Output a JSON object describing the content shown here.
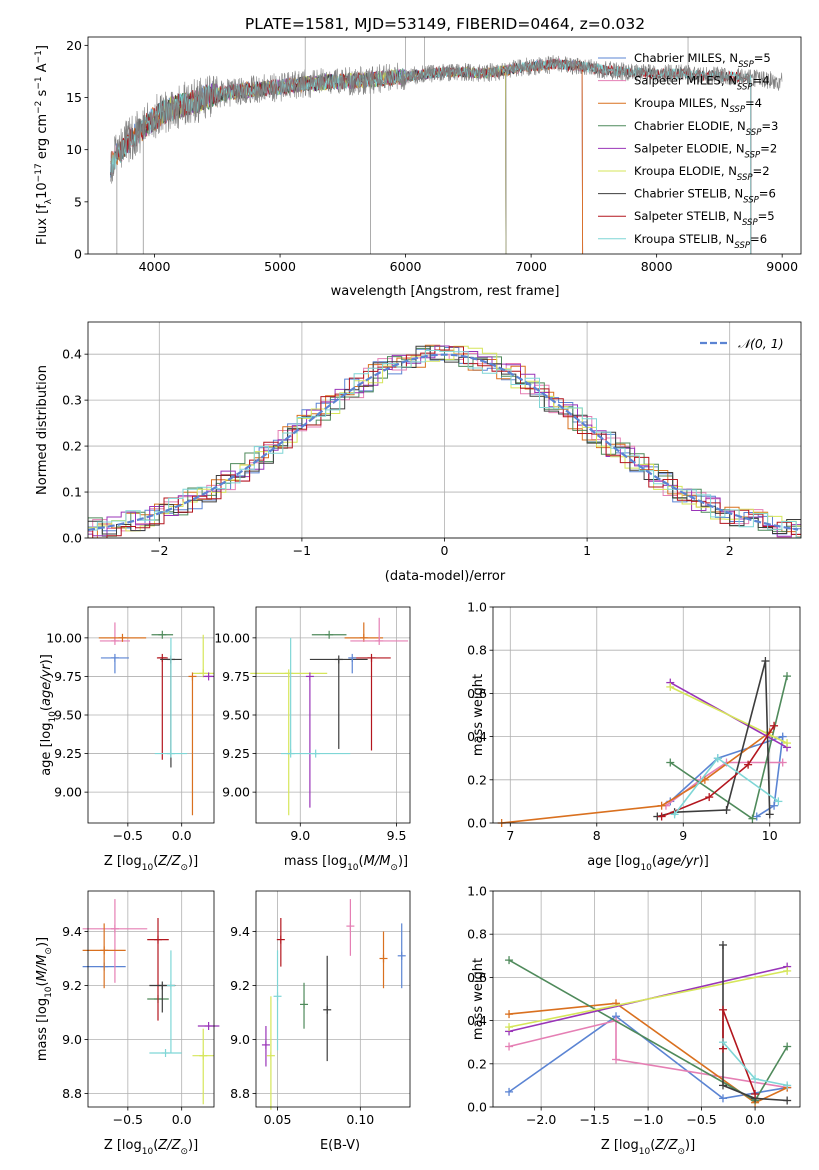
{
  "figure": {
    "title": "PLATE=1581, MJD=53149, FIBERID=0464, z=0.032"
  },
  "series_styles": [
    {
      "name": "Chabrier MILES, N$_{SSP}$=5",
      "label_main": "Chabrier MILES, N",
      "label_sub": "SSP",
      "label_tail": "=5",
      "color": "#5b84d3"
    },
    {
      "name": "Salpeter MILES, N$_{SSP}$=4",
      "label_main": "Salpeter MILES, N",
      "label_sub": "SSP",
      "label_tail": "=4",
      "color": "#e57fb4"
    },
    {
      "name": "Kroupa MILES, N$_{SSP}$=4",
      "label_main": "Kroupa MILES, N",
      "label_sub": "SSP",
      "label_tail": "=4",
      "color": "#d9701f"
    },
    {
      "name": "Chabrier ELODIE, N$_{SSP}$=3",
      "label_main": "Chabrier ELODIE, N",
      "label_sub": "SSP",
      "label_tail": "=3",
      "color": "#4f8a5b"
    },
    {
      "name": "Salpeter ELODIE, N$_{SSP}$=2",
      "label_main": "Salpeter ELODIE, N",
      "label_sub": "SSP",
      "label_tail": "=2",
      "color": "#9934b8"
    },
    {
      "name": "Kroupa ELODIE, N$_{SSP}$=2",
      "label_main": "Kroupa ELODIE, N",
      "label_sub": "SSP",
      "label_tail": "=2",
      "color": "#d6e65a"
    },
    {
      "name": "Chabrier STELIB, N$_{SSP}$=6",
      "label_main": "Chabrier STELIB, N",
      "label_sub": "SSP",
      "label_tail": "=6",
      "color": "#3d3d3d"
    },
    {
      "name": "Salpeter STELIB, N$_{SSP}$=5",
      "label_main": "Salpeter STELIB, N",
      "label_sub": "SSP",
      "label_tail": "=5",
      "color": "#b3161e"
    },
    {
      "name": "Kroupa STELIB, N$_{SSP}$=6",
      "label_main": "Kroupa STELIB, N",
      "label_sub": "SSP",
      "label_tail": "=6",
      "color": "#7fd6d6"
    }
  ],
  "chart_data": [
    {
      "id": "spectrum",
      "type": "line",
      "title": "PLATE=1581, MJD=53149, FIBERID=0464, z=0.032",
      "xlabel": "wavelength [Angstrom, rest frame]",
      "ylabel": "Flux [f$_\\lambda$10$^{-17}$ erg cm$^{-2}$ s$^{-1}$ A$^{-1}$]",
      "xlim": [
        3470,
        9150
      ],
      "ylim": [
        0,
        20.8
      ],
      "xticks": [
        4000,
        5000,
        6000,
        7000,
        8000,
        9000
      ],
      "yticks": [
        0,
        5,
        10,
        15,
        20
      ],
      "grid": false,
      "legend": "top-right",
      "data_color": "#808080",
      "continuum": {
        "x": [
          3650,
          3700,
          3800,
          3900,
          4000,
          4100,
          4200,
          4300,
          4400,
          4600,
          4800,
          5000,
          5200,
          5400,
          5600,
          5800,
          6000,
          6200,
          6400,
          6600,
          6800,
          7000,
          7200,
          7400,
          7600,
          7800,
          8000,
          8200,
          8400,
          8600,
          8800,
          9000
        ],
        "y": [
          8.5,
          9.5,
          11.0,
          12.0,
          13.0,
          13.8,
          14.2,
          14.5,
          15.0,
          15.5,
          15.8,
          16.0,
          16.3,
          16.5,
          16.6,
          16.8,
          17.0,
          17.3,
          17.5,
          17.3,
          17.6,
          18.0,
          18.2,
          18.0,
          17.6,
          17.4,
          17.3,
          17.3,
          17.1,
          17.0,
          16.8,
          16.5
        ]
      },
      "model_extent": [
        {
          "series": "Chabrier MILES, N$_{SSP}$=5",
          "xmin": 3650,
          "xmax": 7410
        },
        {
          "series": "Salpeter MILES, N$_{SSP}$=4",
          "xmin": 3650,
          "xmax": 7410
        },
        {
          "series": "Kroupa MILES, N$_{SSP}$=4",
          "xmin": 3650,
          "xmax": 7410
        },
        {
          "series": "Chabrier ELODIE, N$_{SSP}$=3",
          "xmin": 3910,
          "xmax": 6800
        },
        {
          "series": "Salpeter ELODIE, N$_{SSP}$=2",
          "xmin": 3910,
          "xmax": 6800
        },
        {
          "series": "Kroupa ELODIE, N$_{SSP}$=2",
          "xmin": 3910,
          "xmax": 6800
        },
        {
          "series": "Chabrier STELIB, N$_{SSP}$=6",
          "xmin": 3650,
          "xmax": 8750
        },
        {
          "series": "Salpeter STELIB, N$_{SSP}$=5",
          "xmin": 3650,
          "xmax": 8750
        },
        {
          "series": "Kroupa STELIB, N$_{SSP}$=6",
          "xmin": 3650,
          "xmax": 8750
        }
      ]
    },
    {
      "id": "residuals",
      "type": "line",
      "xlabel": "(data-model)/error",
      "ylabel": "Normed distribution",
      "xlim": [
        -2.5,
        2.5
      ],
      "ylim": [
        0,
        0.47
      ],
      "xticks": [
        -2,
        -1,
        0,
        1,
        2
      ],
      "yticks": [
        0.0,
        0.1,
        0.2,
        0.3,
        0.4
      ],
      "grid": true,
      "legend": "top-right",
      "reference_curve": {
        "name": "$\\mathcal{N}(0,1)$",
        "label": "𝒩(0, 1)",
        "mean": 0,
        "sigma": 1,
        "color": "#5b84d3"
      },
      "bin_width": 0.1,
      "histogram_model": "normal",
      "histogram_scatter": 0.025
    },
    {
      "id": "age_vs_Z",
      "type": "scatter",
      "xlabel": "Z [log$_{10}$(Z/Z$_\\odot$)]",
      "ylabel": "age  [log$_{10}$(age/yr)]",
      "xlim": [
        -0.87,
        0.3
      ],
      "ylim": [
        8.8,
        10.2
      ],
      "xticks": [
        -0.5,
        0.0
      ],
      "yticks": [
        9.0,
        9.25,
        9.5,
        9.75,
        10.0
      ],
      "grid": true,
      "points": [
        {
          "series": 0,
          "x": -0.62,
          "y": 9.87,
          "xerr": 0.13,
          "yerr": [
            0.1,
            0.0
          ]
        },
        {
          "series": 1,
          "x": -0.62,
          "y": 9.98,
          "xerr": 0.14,
          "yerr": [
            0.0,
            0.12
          ]
        },
        {
          "series": 2,
          "x": -0.55,
          "y": 10.0,
          "xerr": 0.22,
          "yerr": [
            0.0,
            0.0
          ]
        },
        {
          "series": 3,
          "x": -0.18,
          "y": 10.02,
          "xerr": 0.1,
          "yerr": [
            0.0,
            0.0
          ]
        },
        {
          "series": 7,
          "x": -0.18,
          "y": 9.87,
          "xerr": 0.05,
          "yerr": [
            0.66,
            0.0
          ]
        },
        {
          "series": 6,
          "x": -0.1,
          "y": 9.86,
          "xerr": 0.1,
          "yerr": [
            0.7,
            0.0
          ]
        },
        {
          "series": 8,
          "x": -0.1,
          "y": 9.25,
          "xerr": 0.15,
          "yerr": [
            0.0,
            0.75
          ]
        },
        {
          "series": 5,
          "x": 0.2,
          "y": 9.77,
          "xerr": 0.1,
          "yerr": [
            0.0,
            0.25
          ]
        },
        {
          "series": 4,
          "x": 0.25,
          "y": 9.75,
          "xerr": 0.05,
          "yerr": [
            0.0,
            0.0
          ]
        },
        {
          "series": 2,
          "x": 0.1,
          "y": 9.75,
          "xerr": 0.0,
          "yerr": [
            0.9,
            0.0
          ]
        }
      ]
    },
    {
      "id": "age_vs_mass",
      "type": "scatter",
      "xlabel": "mass [log$_{10}$(M/M$_\\odot$)]",
      "ylabel": "",
      "xlim": [
        8.77,
        9.57
      ],
      "ylim": [
        8.8,
        10.2
      ],
      "xticks": [
        9.0,
        9.5
      ],
      "yticks": [
        9.0,
        9.25,
        9.5,
        9.75,
        10.0
      ],
      "grid": true,
      "points": [
        {
          "series": 3,
          "x": 9.15,
          "y": 10.02,
          "xerr": 0.09,
          "yerr": [
            0.0,
            0.0
          ]
        },
        {
          "series": 2,
          "x": 9.33,
          "y": 10.0,
          "xerr": 0.1,
          "yerr": [
            0.0,
            0.1
          ]
        },
        {
          "series": 1,
          "x": 9.41,
          "y": 9.98,
          "xerr": 0.15,
          "yerr": [
            0.0,
            0.15
          ]
        },
        {
          "series": 6,
          "x": 9.2,
          "y": 9.86,
          "xerr": 0.15,
          "yerr": [
            0.58,
            0.0
          ]
        },
        {
          "series": 7,
          "x": 9.37,
          "y": 9.87,
          "xerr": 0.1,
          "yerr": [
            0.6,
            0.0
          ]
        },
        {
          "series": 0,
          "x": 9.27,
          "y": 9.87,
          "xerr": 0.0,
          "yerr": [
            0.1,
            0.0
          ]
        },
        {
          "series": 5,
          "x": 8.94,
          "y": 9.77,
          "xerr": 0.2,
          "yerr": [
            0.92,
            0.0
          ]
        },
        {
          "series": 4,
          "x": 9.05,
          "y": 9.75,
          "xerr": 0.0,
          "yerr": [
            0.85,
            0.0
          ]
        },
        {
          "series": 8,
          "x": 8.95,
          "y": 9.25,
          "xerr": 0.0,
          "yerr": [
            0.0,
            0.75
          ]
        },
        {
          "series": 8,
          "x": 9.08,
          "y": 9.25,
          "xerr": 0.18,
          "yerr": [
            0.0,
            0.0
          ]
        }
      ]
    },
    {
      "id": "weight_vs_age",
      "type": "line",
      "xlabel": "age  [log$_{10}$(age/yr)]",
      "ylabel": "mass weight",
      "xlim": [
        6.8,
        10.35
      ],
      "ylim": [
        0,
        1.0
      ],
      "xticks": [
        7,
        8,
        9,
        10
      ],
      "yticks": [
        0.0,
        0.2,
        0.4,
        0.6,
        0.8,
        1.0
      ],
      "grid": true,
      "series": [
        {
          "series": 0,
          "x": [
            8.85,
            9.4,
            10.15,
            10.05,
            9.85
          ],
          "y": [
            0.1,
            0.3,
            0.4,
            0.08,
            0.03
          ]
        },
        {
          "series": 1,
          "x": [
            8.8,
            9.2,
            9.5,
            10.15
          ],
          "y": [
            0.08,
            0.2,
            0.28,
            0.28
          ]
        },
        {
          "series": 2,
          "x": [
            6.9,
            8.75,
            9.25,
            10.0
          ],
          "y": [
            0.0,
            0.08,
            0.2,
            0.42
          ]
        },
        {
          "series": 3,
          "x": [
            8.85,
            9.8,
            10.2
          ],
          "y": [
            0.28,
            0.02,
            0.68
          ]
        },
        {
          "series": 4,
          "x": [
            8.85,
            10.2
          ],
          "y": [
            0.65,
            0.35
          ]
        },
        {
          "series": 5,
          "x": [
            8.85,
            10.2
          ],
          "y": [
            0.63,
            0.37
          ]
        },
        {
          "series": 6,
          "x": [
            8.7,
            8.9,
            9.5,
            9.95,
            10.0
          ],
          "y": [
            0.03,
            0.05,
            0.06,
            0.75,
            0.04
          ]
        },
        {
          "series": 7,
          "x": [
            8.75,
            9.3,
            9.75,
            10.05
          ],
          "y": [
            0.03,
            0.12,
            0.27,
            0.45
          ]
        },
        {
          "series": 8,
          "x": [
            8.9,
            9.4,
            10.1
          ],
          "y": [
            0.04,
            0.3,
            0.1
          ]
        }
      ]
    },
    {
      "id": "mass_vs_Z",
      "type": "scatter",
      "xlabel": "Z [log$_{10}$(Z/Z$_\\odot$)]",
      "ylabel": "mass [log$_{10}$(M/M$_\\odot$)]",
      "xlim": [
        -0.87,
        0.3
      ],
      "ylim": [
        8.75,
        9.55
      ],
      "xticks": [
        -0.5,
        0.0
      ],
      "yticks": [
        8.8,
        9.0,
        9.2,
        9.4
      ],
      "grid": true,
      "points": [
        {
          "series": 0,
          "x": -0.72,
          "y": 9.27,
          "xerr": 0.2,
          "yerr": [
            0.0,
            0.0
          ]
        },
        {
          "series": 1,
          "x": -0.62,
          "y": 9.41,
          "xerr": 0.3,
          "yerr": [
            0.2,
            0.11
          ]
        },
        {
          "series": 2,
          "x": -0.72,
          "y": 9.33,
          "xerr": 0.2,
          "yerr": [
            0.14,
            0.1
          ]
        },
        {
          "series": 3,
          "x": -0.22,
          "y": 9.15,
          "xerr": 0.1,
          "yerr": [
            0.0,
            0.0
          ]
        },
        {
          "series": 7,
          "x": -0.22,
          "y": 9.37,
          "xerr": 0.1,
          "yerr": [
            0.3,
            0.08
          ]
        },
        {
          "series": 6,
          "x": -0.18,
          "y": 9.2,
          "xerr": 0.12,
          "yerr": [
            0.1,
            0.0
          ]
        },
        {
          "series": 8,
          "x": -0.15,
          "y": 8.95,
          "xerr": 0.15,
          "yerr": [
            0.0,
            0.0
          ]
        },
        {
          "series": 8,
          "x": -0.1,
          "y": 9.2,
          "xerr": 0.0,
          "yerr": [
            0.25,
            0.13
          ]
        },
        {
          "series": 5,
          "x": 0.2,
          "y": 8.94,
          "xerr": 0.1,
          "yerr": [
            0.18,
            0.1
          ]
        },
        {
          "series": 4,
          "x": 0.25,
          "y": 9.05,
          "xerr": 0.1,
          "yerr": [
            0.0,
            0.0
          ]
        }
      ]
    },
    {
      "id": "mass_vs_EBV",
      "type": "scatter",
      "xlabel": "E(B-V)",
      "ylabel": "",
      "xlim": [
        0.037,
        0.13
      ],
      "ylim": [
        8.75,
        9.55
      ],
      "xticks": [
        0.05,
        0.1
      ],
      "yticks": [
        8.8,
        9.0,
        9.2,
        9.4
      ],
      "grid": true,
      "points": [
        {
          "series": 4,
          "x": 0.043,
          "y": 8.98,
          "yerr": [
            0.08,
            0.07
          ]
        },
        {
          "series": 5,
          "x": 0.046,
          "y": 8.94,
          "yerr": [
            0.2,
            0.22
          ]
        },
        {
          "series": 8,
          "x": 0.05,
          "y": 9.16,
          "yerr": [
            0.2,
            0.17
          ]
        },
        {
          "series": 7,
          "x": 0.052,
          "y": 9.37,
          "yerr": [
            0.1,
            0.08
          ]
        },
        {
          "series": 3,
          "x": 0.066,
          "y": 9.13,
          "yerr": [
            0.09,
            0.08
          ]
        },
        {
          "series": 6,
          "x": 0.08,
          "y": 9.11,
          "yerr": [
            0.19,
            0.2
          ]
        },
        {
          "series": 1,
          "x": 0.094,
          "y": 9.42,
          "yerr": [
            0.11,
            0.1
          ]
        },
        {
          "series": 2,
          "x": 0.114,
          "y": 9.3,
          "yerr": [
            0.11,
            0.1
          ]
        },
        {
          "series": 0,
          "x": 0.125,
          "y": 9.31,
          "yerr": [
            0.12,
            0.12
          ]
        }
      ]
    },
    {
      "id": "weight_vs_Z",
      "type": "line",
      "xlabel": "Z [log$_{10}$(Z/Z$_\\odot$)]",
      "ylabel": "mass weight",
      "xlim": [
        -2.45,
        0.42
      ],
      "ylim": [
        0,
        1.0
      ],
      "xticks": [
        -2.0,
        -1.5,
        -1.0,
        -0.5,
        0.0
      ],
      "yticks": [
        0.0,
        0.2,
        0.4,
        0.6,
        0.8,
        1.0
      ],
      "grid": true,
      "series": [
        {
          "series": 0,
          "x": [
            -2.3,
            -1.3,
            -0.3,
            0.3
          ],
          "y": [
            0.07,
            0.42,
            0.04,
            0.09
          ]
        },
        {
          "series": 1,
          "x": [
            -2.3,
            -1.3,
            -1.3,
            0.3
          ],
          "y": [
            0.28,
            0.4,
            0.22,
            0.09
          ]
        },
        {
          "series": 2,
          "x": [
            -2.3,
            -1.3,
            0.0,
            0.3
          ],
          "y": [
            0.43,
            0.48,
            0.02,
            0.09
          ]
        },
        {
          "series": 3,
          "x": [
            -2.3,
            0.0,
            0.3
          ],
          "y": [
            0.68,
            0.03,
            0.28
          ]
        },
        {
          "series": 4,
          "x": [
            -2.3,
            0.3
          ],
          "y": [
            0.35,
            0.65
          ]
        },
        {
          "series": 5,
          "x": [
            -2.3,
            0.3
          ],
          "y": [
            0.37,
            0.63
          ]
        },
        {
          "series": 6,
          "x": [
            -0.3,
            -0.3,
            0.0,
            0.3
          ],
          "y": [
            0.75,
            0.1,
            0.04,
            0.03
          ]
        },
        {
          "series": 7,
          "x": [
            -0.3,
            -0.3,
            0.0
          ],
          "y": [
            0.27,
            0.45,
            0.06
          ]
        },
        {
          "series": 8,
          "x": [
            -0.3,
            0.0,
            0.3
          ],
          "y": [
            0.3,
            0.13,
            0.1
          ]
        }
      ]
    }
  ]
}
